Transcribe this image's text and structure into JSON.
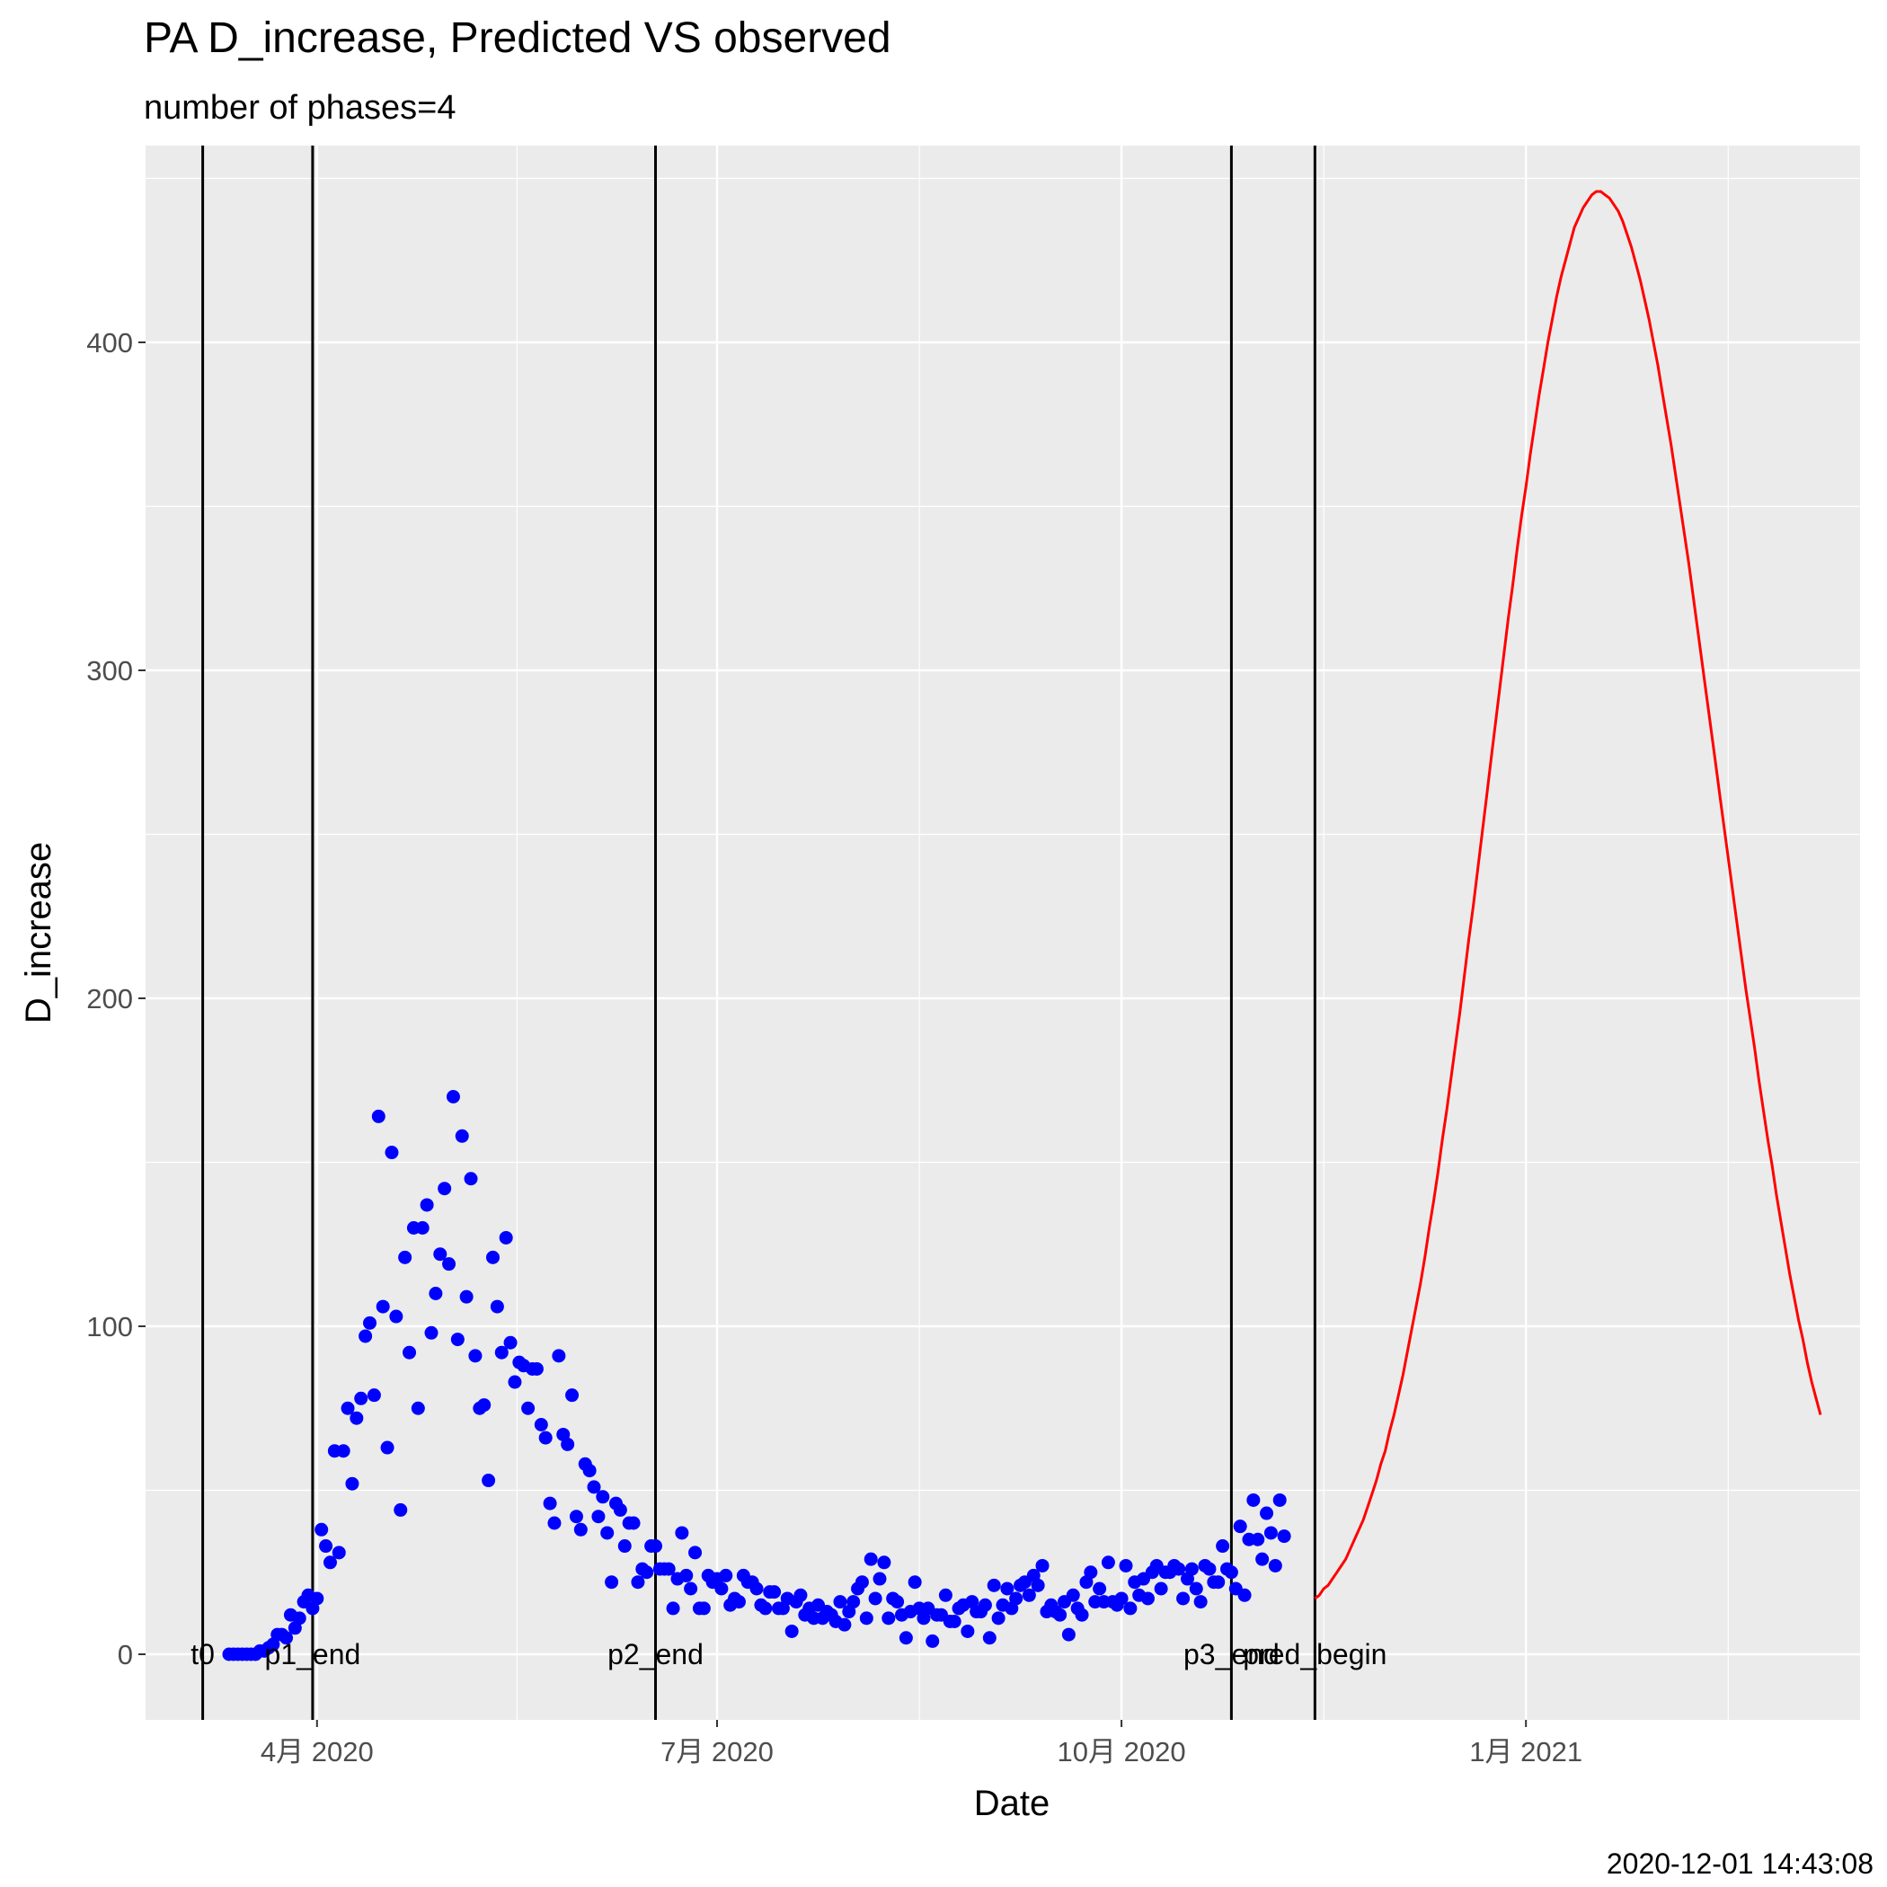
{
  "chart_data": {
    "type": "scatter",
    "title": "PA D_increase, Predicted VS observed",
    "subtitle": "number of phases=4",
    "xlabel": "Date",
    "ylabel": "D_increase",
    "caption": "2020-12-01 14:43:08",
    "xlim": [
      "2020-02-22",
      "2021-03-18"
    ],
    "ylim": [
      -20,
      460
    ],
    "x_ticks": [
      {
        "date": "2020-04-01",
        "label": "4月 2020"
      },
      {
        "date": "2020-07-01",
        "label": "7月 2020"
      },
      {
        "date": "2020-10-01",
        "label": "10月 2020"
      },
      {
        "date": "2021-01-01",
        "label": "1月 2021"
      }
    ],
    "y_ticks": [
      0,
      100,
      200,
      300,
      400
    ],
    "grid": true,
    "legend": "none",
    "colors": {
      "observed": "#0000ff",
      "predicted": "#ff0000",
      "phase_line": "#000000",
      "panel": "#ebebeb"
    },
    "phase_lines": [
      {
        "date": "2020-03-06",
        "label": "t0"
      },
      {
        "date": "2020-03-31",
        "label": "p1_end"
      },
      {
        "date": "2020-06-17",
        "label": "p2_end"
      },
      {
        "date": "2020-10-26",
        "label": "p3_end"
      },
      {
        "date": "2020-11-14",
        "label": "pred_begin"
      }
    ],
    "series": [
      {
        "kind": "points",
        "start_date": "2020-03-12",
        "values": [
          0,
          0,
          0,
          0,
          0,
          0,
          0,
          1,
          1,
          2,
          3,
          6,
          6,
          5,
          12,
          8,
          11,
          16,
          18,
          14,
          17,
          38,
          33,
          28,
          62,
          31,
          62,
          75,
          52,
          72,
          78,
          97,
          101,
          79,
          164,
          106,
          63,
          153,
          103,
          44,
          121,
          92,
          130,
          75,
          130,
          137,
          98,
          110,
          122,
          142,
          119,
          170,
          96,
          158,
          109,
          145,
          91,
          75,
          76,
          53,
          121,
          106,
          92,
          127,
          95,
          83,
          89,
          88,
          75,
          87,
          87,
          70,
          66,
          46,
          40,
          91,
          67,
          64,
          79,
          42,
          38,
          58,
          56,
          51,
          42,
          48,
          37,
          22,
          46,
          44,
          33,
          40,
          40,
          22,
          26,
          25,
          33,
          33,
          26,
          26,
          26,
          14,
          23,
          37,
          24,
          20,
          31,
          14,
          14,
          24,
          22,
          23,
          20,
          24,
          15,
          17,
          16,
          24,
          22,
          22,
          20,
          15,
          14,
          19,
          19,
          14,
          14,
          17,
          7,
          16,
          18,
          12,
          14,
          11,
          15,
          11,
          13,
          12,
          10,
          16,
          9,
          13,
          16,
          20,
          22,
          11,
          29,
          17,
          23,
          28,
          11,
          17,
          16,
          12,
          5,
          13,
          22,
          14,
          11,
          14,
          4,
          12,
          12,
          18,
          10,
          10,
          14,
          15,
          7,
          16,
          13,
          13,
          15,
          5,
          21,
          11,
          15,
          20,
          14,
          17,
          21,
          22,
          18,
          24,
          21,
          27,
          13,
          15,
          13,
          12,
          16,
          6,
          18,
          14,
          12,
          22,
          25,
          16,
          20,
          16,
          28,
          16,
          15,
          17,
          27,
          14,
          22,
          18,
          23,
          17,
          25,
          27,
          20,
          25,
          25,
          27,
          26,
          17,
          23,
          26,
          20,
          16,
          27,
          26,
          22,
          22,
          33,
          26,
          25,
          20,
          39,
          18,
          35,
          47,
          35,
          29,
          43,
          37,
          27,
          47,
          36
        ]
      },
      {
        "kind": "line",
        "name": "predicted",
        "start_date": "2020-11-14",
        "step_days": 1,
        "values": [
          17,
          18,
          20,
          21,
          23,
          25,
          27,
          29,
          32,
          35,
          38,
          41,
          45,
          49,
          53,
          58,
          62,
          68,
          73,
          79,
          85,
          92,
          99,
          106,
          113,
          121,
          130,
          138,
          147,
          157,
          166,
          176,
          186,
          196,
          207,
          218,
          228,
          239,
          250,
          261,
          272,
          283,
          294,
          305,
          316,
          326,
          337,
          347,
          356,
          366,
          375,
          384,
          392,
          400,
          407,
          414,
          420,
          425,
          430,
          435,
          438,
          441,
          443,
          445,
          446,
          446,
          445,
          444,
          442,
          440,
          437,
          433,
          429,
          424,
          419,
          413,
          407,
          400,
          393,
          385,
          377,
          369,
          360,
          351,
          342,
          333,
          323,
          313,
          303,
          293,
          283,
          273,
          263,
          253,
          243,
          233,
          223,
          213,
          203,
          194,
          185,
          175,
          166,
          157,
          149,
          140,
          132,
          124,
          116,
          109,
          102,
          96,
          89,
          83,
          78,
          73
        ]
      }
    ]
  }
}
